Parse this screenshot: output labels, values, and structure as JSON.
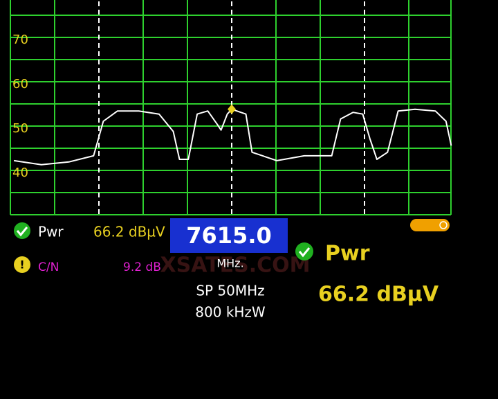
{
  "chart_data": {
    "type": "line",
    "x": [
      7590.4,
      7593.5,
      7596.6,
      7599.4,
      7600.5,
      7602.1,
      7604.5,
      7606.8,
      7608.4,
      7609.1,
      7610.1,
      7611.1,
      7612.3,
      7613.4,
      7613.8,
      7614.5,
      7615.0,
      7616.6,
      7617.3,
      7620.1,
      7623.2,
      7626.3,
      7627.3,
      7628.7,
      7629.8,
      7630.6,
      7631.4,
      7632.6,
      7633.8,
      7635.7,
      7638.0,
      7639.2,
      7639.8
    ],
    "series": [
      {
        "color": "#ffffff",
        "values": [
          42.2,
          41.3,
          41.9,
          43.3,
          51.1,
          53.4,
          53.4,
          52.7,
          48.8,
          42.5,
          42.5,
          52.7,
          53.4,
          50.3,
          49.1,
          52.7,
          53.8,
          52.7,
          44.1,
          42.2,
          43.3,
          43.3,
          51.6,
          53.1,
          52.7,
          47.2,
          42.5,
          44.1,
          53.4,
          53.8,
          53.4,
          51.1,
          45.6
        ]
      }
    ],
    "marker": {
      "x": 7615.0,
      "y": 53.8,
      "color": "#e8d020"
    },
    "xlim": [
      7590,
      7640
    ],
    "xticks": [
      7590,
      7595,
      7600,
      7605,
      7610,
      7615,
      7620,
      7625,
      7630,
      7635,
      7640
    ],
    "dashed_x": [
      7600,
      7615,
      7630
    ],
    "ylim": [
      30,
      80
    ],
    "yticks": [
      40,
      50,
      60,
      70,
      80
    ],
    "ygrid": [
      35,
      40,
      45,
      50,
      55,
      60,
      65,
      70,
      75
    ],
    "grid": true,
    "grid_color": "#2ed02e"
  },
  "status": {
    "pwr_label": "Pwr",
    "pwr_value": "66.2 dBµV",
    "cn_label": "C/N",
    "cn_value": "9.2 dB"
  },
  "frequency": {
    "value": "7615.0",
    "unit": "MHz."
  },
  "span": "SP 50MHz",
  "rbw": "800 kHzW",
  "readout": {
    "label": "Pwr",
    "value": "66.2 dBµV"
  },
  "watermark": "XSATES.COM"
}
